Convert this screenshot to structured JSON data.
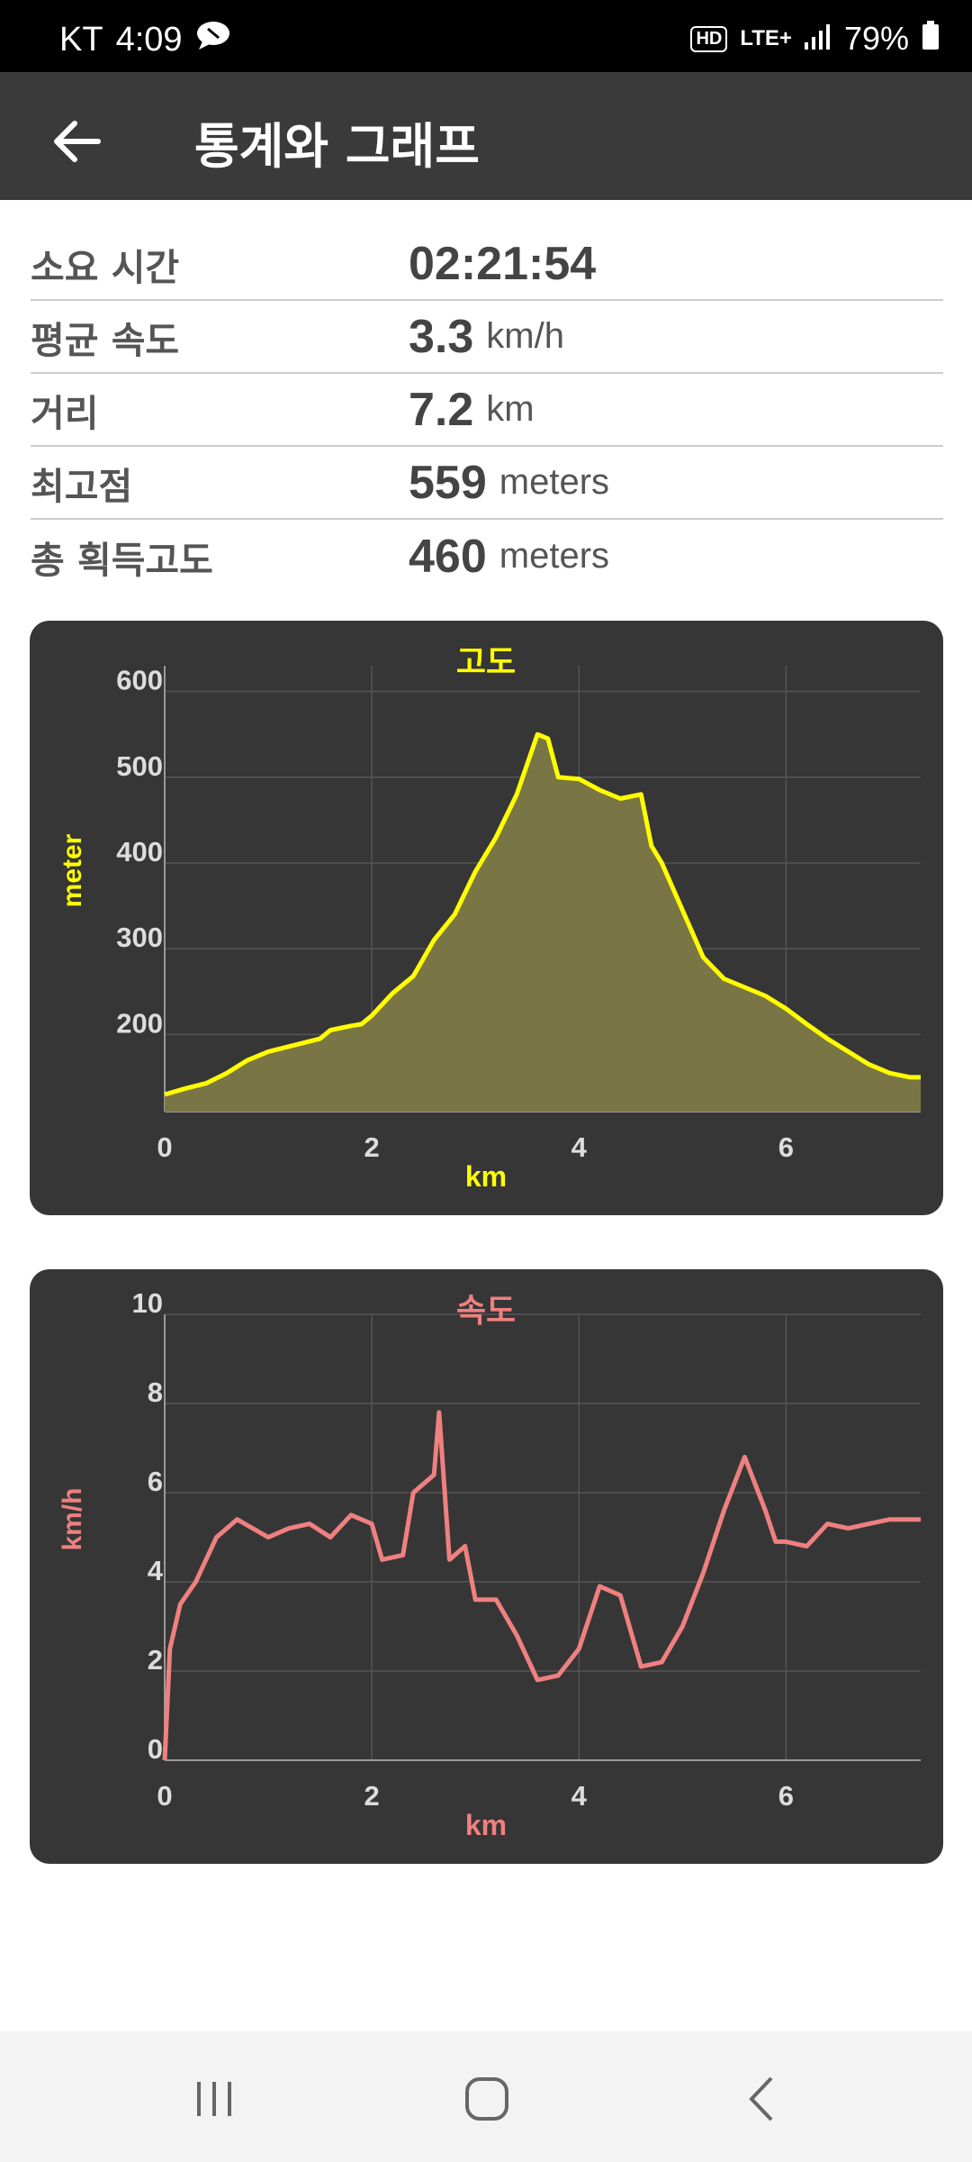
{
  "status_bar": {
    "carrier": "KT",
    "time": "4:09",
    "hd": "HD",
    "network": "LTE+",
    "battery": "79%"
  },
  "app_bar": {
    "title": "통계와 그래프"
  },
  "stats": [
    {
      "label": "소요 시간",
      "value": "02:21:54",
      "unit": ""
    },
    {
      "label": "평균 속도",
      "value": "3.3",
      "unit": "km/h"
    },
    {
      "label": "거리",
      "value": "7.2",
      "unit": "km"
    },
    {
      "label": "최고점",
      "value": "559",
      "unit": "meters"
    },
    {
      "label": "총 획득고도",
      "value": "460",
      "unit": "meters"
    }
  ],
  "chart_data": [
    {
      "type": "area",
      "title": "고도",
      "xlabel": "km",
      "ylabel": "meter",
      "color": "#ffff00",
      "fill": "#7a7544",
      "xlim": [
        0,
        7.3
      ],
      "ylim": [
        110,
        630
      ],
      "xticks": [
        0,
        2,
        4,
        6
      ],
      "yticks": [
        200,
        300,
        400,
        500,
        600
      ],
      "grid": true,
      "x": [
        0,
        0.2,
        0.4,
        0.6,
        0.8,
        1.0,
        1.2,
        1.5,
        1.6,
        1.8,
        1.9,
        2.0,
        2.2,
        2.4,
        2.6,
        2.8,
        3.0,
        3.2,
        3.4,
        3.6,
        3.7,
        3.8,
        4.0,
        4.2,
        4.4,
        4.6,
        4.7,
        4.8,
        5.0,
        5.2,
        5.4,
        5.6,
        5.8,
        6.0,
        6.2,
        6.4,
        6.6,
        6.8,
        7.0,
        7.2,
        7.3
      ],
      "y": [
        130,
        137,
        143,
        155,
        170,
        180,
        186,
        195,
        205,
        210,
        212,
        222,
        248,
        268,
        310,
        340,
        390,
        430,
        480,
        550,
        545,
        500,
        498,
        485,
        475,
        480,
        420,
        400,
        345,
        290,
        265,
        255,
        245,
        230,
        212,
        195,
        180,
        165,
        155,
        150,
        150
      ]
    },
    {
      "type": "line",
      "title": "속도",
      "xlabel": "km",
      "ylabel": "km/h",
      "color": "#f08080",
      "xlim": [
        0,
        7.3
      ],
      "ylim": [
        0,
        10
      ],
      "xticks": [
        0,
        2,
        4,
        6
      ],
      "yticks": [
        0,
        2,
        4,
        6,
        8,
        10
      ],
      "grid": true,
      "x": [
        0,
        0.05,
        0.15,
        0.3,
        0.5,
        0.7,
        1.0,
        1.2,
        1.4,
        1.6,
        1.8,
        2.0,
        2.1,
        2.3,
        2.4,
        2.6,
        2.65,
        2.75,
        2.9,
        3.0,
        3.2,
        3.4,
        3.6,
        3.8,
        4.0,
        4.2,
        4.4,
        4.6,
        4.8,
        5.0,
        5.2,
        5.4,
        5.6,
        5.8,
        5.9,
        6.0,
        6.2,
        6.4,
        6.6,
        6.8,
        7.0,
        7.2,
        7.3
      ],
      "y": [
        0,
        2.5,
        3.5,
        4.0,
        5.0,
        5.4,
        5.0,
        5.2,
        5.3,
        5.0,
        5.5,
        5.3,
        4.5,
        4.6,
        6.0,
        6.4,
        7.8,
        4.5,
        4.8,
        3.6,
        3.6,
        2.8,
        1.8,
        1.9,
        2.5,
        3.9,
        3.7,
        2.1,
        2.2,
        3.0,
        4.2,
        5.6,
        6.8,
        5.6,
        4.9,
        4.9,
        4.8,
        5.3,
        5.2,
        5.3,
        5.4,
        5.4,
        5.4
      ]
    }
  ],
  "nav_bar": {
    "buttons": [
      "recent-apps",
      "home",
      "back"
    ]
  }
}
